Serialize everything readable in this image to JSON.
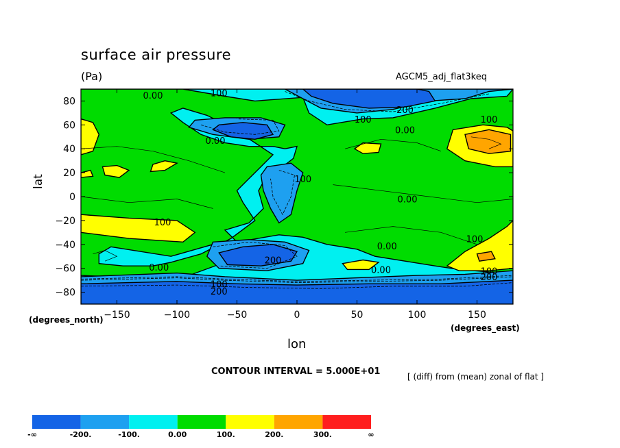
{
  "header": {
    "title": "surface air pressure",
    "units": "(Pa)",
    "run_name": "AGCM5_adj_flat3keq"
  },
  "footer": {
    "contour_interval": "CONTOUR INTERVAL = 5.000E+01",
    "diff_note": "[ (diff) from (mean) zonal of flat ]"
  },
  "colors": {
    "lt_m200": "#1464e6",
    "m200_m100": "#1ea0f0",
    "m100_0": "#00f0f0",
    "0_100": "#00dc00",
    "100_200": "#ffff00",
    "200_300": "#ffa500",
    "gt_300": "#ff1e1e"
  },
  "chart_data": {
    "type": "heatmap",
    "title": "surface air pressure",
    "subtitle": "(Pa)",
    "xlabel": "lon",
    "ylabel": "lat",
    "x_units": "(degrees_east)",
    "y_units": "(degrees_north)",
    "xlim": [
      -180,
      180
    ],
    "ylim": [
      -90,
      90
    ],
    "x_ticks": [
      "-150",
      "-100",
      "-50",
      "0",
      "50",
      "100",
      "150"
    ],
    "y_ticks": [
      "80",
      "60",
      "40",
      "20",
      "0",
      "-20",
      "-40",
      "-60",
      "-80"
    ],
    "contour_interval": 50,
    "colorbar": {
      "labels": [
        "-∞",
        "-200.",
        "-100.",
        "0.00",
        "100.",
        "200.",
        "300.",
        "∞"
      ],
      "bins": [
        {
          "from": "-inf",
          "to": -200
        },
        {
          "from": -200,
          "to": -100
        },
        {
          "from": -100,
          "to": 0
        },
        {
          "from": 0,
          "to": 100
        },
        {
          "from": 100,
          "to": 200
        },
        {
          "from": 200,
          "to": 300
        },
        {
          "from": 300,
          "to": "inf"
        }
      ]
    },
    "contour_labels": [
      {
        "text": "0.00",
        "lon": -120,
        "lat": 82
      },
      {
        "text": "100",
        "lon": -65,
        "lat": 84
      },
      {
        "text": "200",
        "lon": 90,
        "lat": 70
      },
      {
        "text": "100",
        "lon": 55,
        "lat": 62
      },
      {
        "text": "0.00",
        "lon": 90,
        "lat": 53
      },
      {
        "text": "100",
        "lon": 160,
        "lat": 62
      },
      {
        "text": "0.00",
        "lon": -68,
        "lat": 44
      },
      {
        "text": "100",
        "lon": 5,
        "lat": 12
      },
      {
        "text": "0.00",
        "lon": 92,
        "lat": -5
      },
      {
        "text": "100",
        "lon": -112,
        "lat": -24
      },
      {
        "text": "0.00",
        "lon": 75,
        "lat": -44
      },
      {
        "text": "100",
        "lon": 148,
        "lat": -38
      },
      {
        "text": "200",
        "lon": -20,
        "lat": -56
      },
      {
        "text": "0.00",
        "lon": -115,
        "lat": -62
      },
      {
        "text": "0.00",
        "lon": 70,
        "lat": -64
      },
      {
        "text": "100",
        "lon": -65,
        "lat": -76
      },
      {
        "text": "200",
        "lon": -65,
        "lat": -82
      },
      {
        "text": "100",
        "lon": 160,
        "lat": -65
      },
      {
        "text": "200",
        "lon": 160,
        "lat": -70
      }
    ]
  }
}
